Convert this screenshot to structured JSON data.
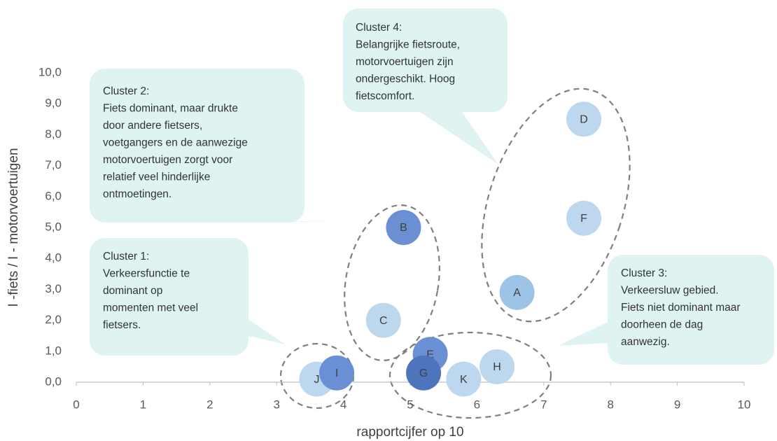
{
  "chart_data": {
    "type": "scatter",
    "x_label": "rapportcijfer op 10",
    "y_label": "I -fiets / I -  motorvoertuigen",
    "labels": [
      "D",
      "F",
      "A",
      "B",
      "C",
      "E",
      "G",
      "K",
      "H",
      "J",
      "I"
    ],
    "x": [
      7.6,
      7.6,
      6.6,
      4.9,
      4.6,
      5.3,
      5.2,
      5.8,
      6.3,
      3.6,
      3.9
    ],
    "values": [
      8.5,
      5.3,
      2.9,
      5.0,
      2.0,
      0.9,
      0.3,
      0.1,
      0.5,
      0.1,
      0.3
    ],
    "colors": [
      "#bdd7ee",
      "#bdd7ee",
      "#9dc3e6",
      "#6a8fd2",
      "#bdd7ee",
      "#6a8fd2",
      "#4d74bd",
      "#bdd7ee",
      "#bdd7ee",
      "#bdd7ee",
      "#6a8fd2"
    ],
    "xlim": [
      0,
      10
    ],
    "xticks": [
      0,
      1,
      2,
      3,
      4,
      5,
      6,
      7,
      8,
      9,
      10
    ],
    "ylim": [
      0,
      10
    ],
    "yticks": [
      {
        "value": 0,
        "label": "0,0"
      },
      {
        "value": 1,
        "label": "1,0"
      },
      {
        "value": 2,
        "label": "2,0"
      },
      {
        "value": 3,
        "label": "3,0"
      },
      {
        "value": 4,
        "label": "4,0"
      },
      {
        "value": 5,
        "label": "5,0"
      },
      {
        "value": 6,
        "label": "6,0"
      },
      {
        "value": 7,
        "label": "7,0"
      },
      {
        "value": 8,
        "label": "8,0"
      },
      {
        "value": 9,
        "label": "9,0"
      },
      {
        "value": 10,
        "label": "10,0"
      }
    ],
    "annotations": [
      {
        "lines": [
          "Cluster 2:",
          "Fiets dominant, maar drukte",
          "door andere fietsers,",
          "voetgangers en de aanwezige",
          "motorvoertuigen zorgt voor",
          "relatief veel hinderlijke",
          "ontmoetingen."
        ]
      },
      {
        "lines": [
          "Cluster 4:",
          "Belangrijke fietsroute,",
          "motorvoertuigen zijn",
          "ondergeschikt. Hoog",
          "fietscomfort."
        ]
      },
      {
        "lines": [
          "Cluster 1:",
          "Verkeersfunctie te",
          "dominant op",
          "momenten met veel",
          "fietsers."
        ]
      },
      {
        "lines": [
          "Cluster 3:",
          "Verkeersluw gebied.",
          "Fiets niet dominant maar",
          "doorheen de dag",
          "aanwezig."
        ]
      }
    ]
  }
}
